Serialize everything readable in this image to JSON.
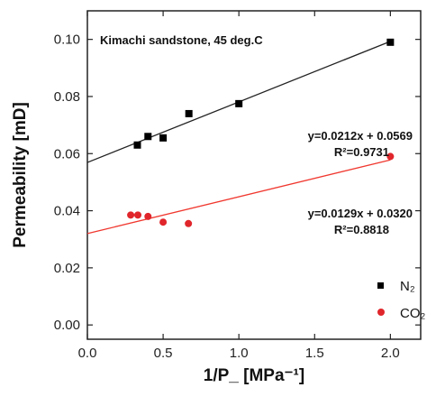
{
  "chart_data": {
    "type": "scatter",
    "title": "Kimachi sandstone, 45 deg.C",
    "xlabel": "1/P_ [MPa⁻¹]",
    "ylabel": "Permeability [mD]",
    "xlim": [
      0.0,
      2.2
    ],
    "ylim": [
      -0.005,
      0.11
    ],
    "x_ticks": [
      0.0,
      0.5,
      1.0,
      1.5,
      2.0
    ],
    "x_tick_labels": [
      "0.0",
      "0.5",
      "1.0",
      "1.5",
      "2.0"
    ],
    "y_ticks": [
      0.0,
      0.02,
      0.04,
      0.06,
      0.08,
      0.1
    ],
    "y_tick_labels": [
      "0.00",
      "0.02",
      "0.04",
      "0.06",
      "0.08",
      "0.10"
    ],
    "grid": false,
    "legend_position": "bottom-right",
    "series": [
      {
        "name": "N₂",
        "marker": "square",
        "color": "#000000",
        "x": [
          0.33,
          0.4,
          0.5,
          0.67,
          1.0,
          2.0
        ],
        "y": [
          0.063,
          0.066,
          0.0655,
          0.074,
          0.0775,
          0.099
        ],
        "fit": {
          "slope": 0.0212,
          "intercept": 0.0569,
          "color": "#222222"
        }
      },
      {
        "name": "CO₂",
        "marker": "circle",
        "color": "#e0262b",
        "x": [
          0.286,
          0.333,
          0.4,
          0.5,
          0.667,
          2.0
        ],
        "y": [
          0.0385,
          0.0385,
          0.038,
          0.036,
          0.0355,
          0.059
        ],
        "fit": {
          "slope": 0.0129,
          "intercept": 0.032,
          "color": "#f0382f"
        }
      }
    ],
    "annotations": [
      {
        "eq": "y=0.0212x + 0.0569",
        "r2": "R²=0.9731"
      },
      {
        "eq": "y=0.0129x + 0.0320",
        "r2": "R²=0.8818"
      }
    ]
  }
}
